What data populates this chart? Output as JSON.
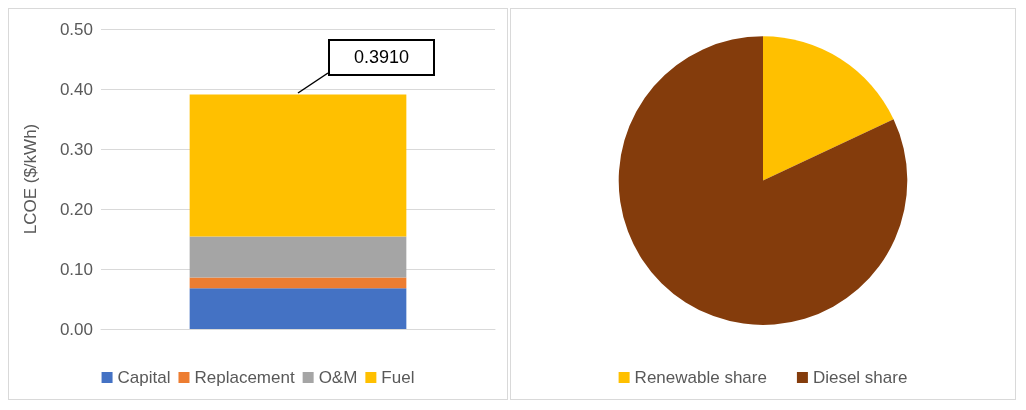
{
  "chart_data": [
    {
      "type": "bar",
      "stacked": true,
      "categories": [
        null
      ],
      "ylabel": "LCOE ($/kWh)",
      "ylim": [
        0,
        0.5
      ],
      "yticks": [
        {
          "value": 0,
          "label": "0.00"
        },
        {
          "value": 0.1,
          "label": "0.10"
        },
        {
          "value": 0.2,
          "label": "0.20"
        },
        {
          "value": 0.3,
          "label": "0.30"
        },
        {
          "value": 0.4,
          "label": "0.40"
        },
        {
          "value": 0.5,
          "label": "0.50"
        }
      ],
      "series": [
        {
          "name": "Capital",
          "color": "#4472c4",
          "values": [
            0.068
          ]
        },
        {
          "name": "Replacement",
          "color": "#ed7d31",
          "values": [
            0.018
          ]
        },
        {
          "name": "O&M",
          "color": "#a5a5a5",
          "values": [
            0.068
          ]
        },
        {
          "name": "Fuel",
          "color": "#ffc000",
          "values": [
            0.237
          ]
        }
      ],
      "annotations": [
        {
          "text": "0.3910",
          "y": 0.391
        }
      ],
      "grid": "y",
      "legend": "bottom"
    },
    {
      "type": "pie",
      "categories": [
        "Renewable share",
        "Diesel share"
      ],
      "values": [
        18,
        82
      ],
      "colors": [
        "#ffc000",
        "#843c0c"
      ],
      "legend": "bottom"
    }
  ]
}
